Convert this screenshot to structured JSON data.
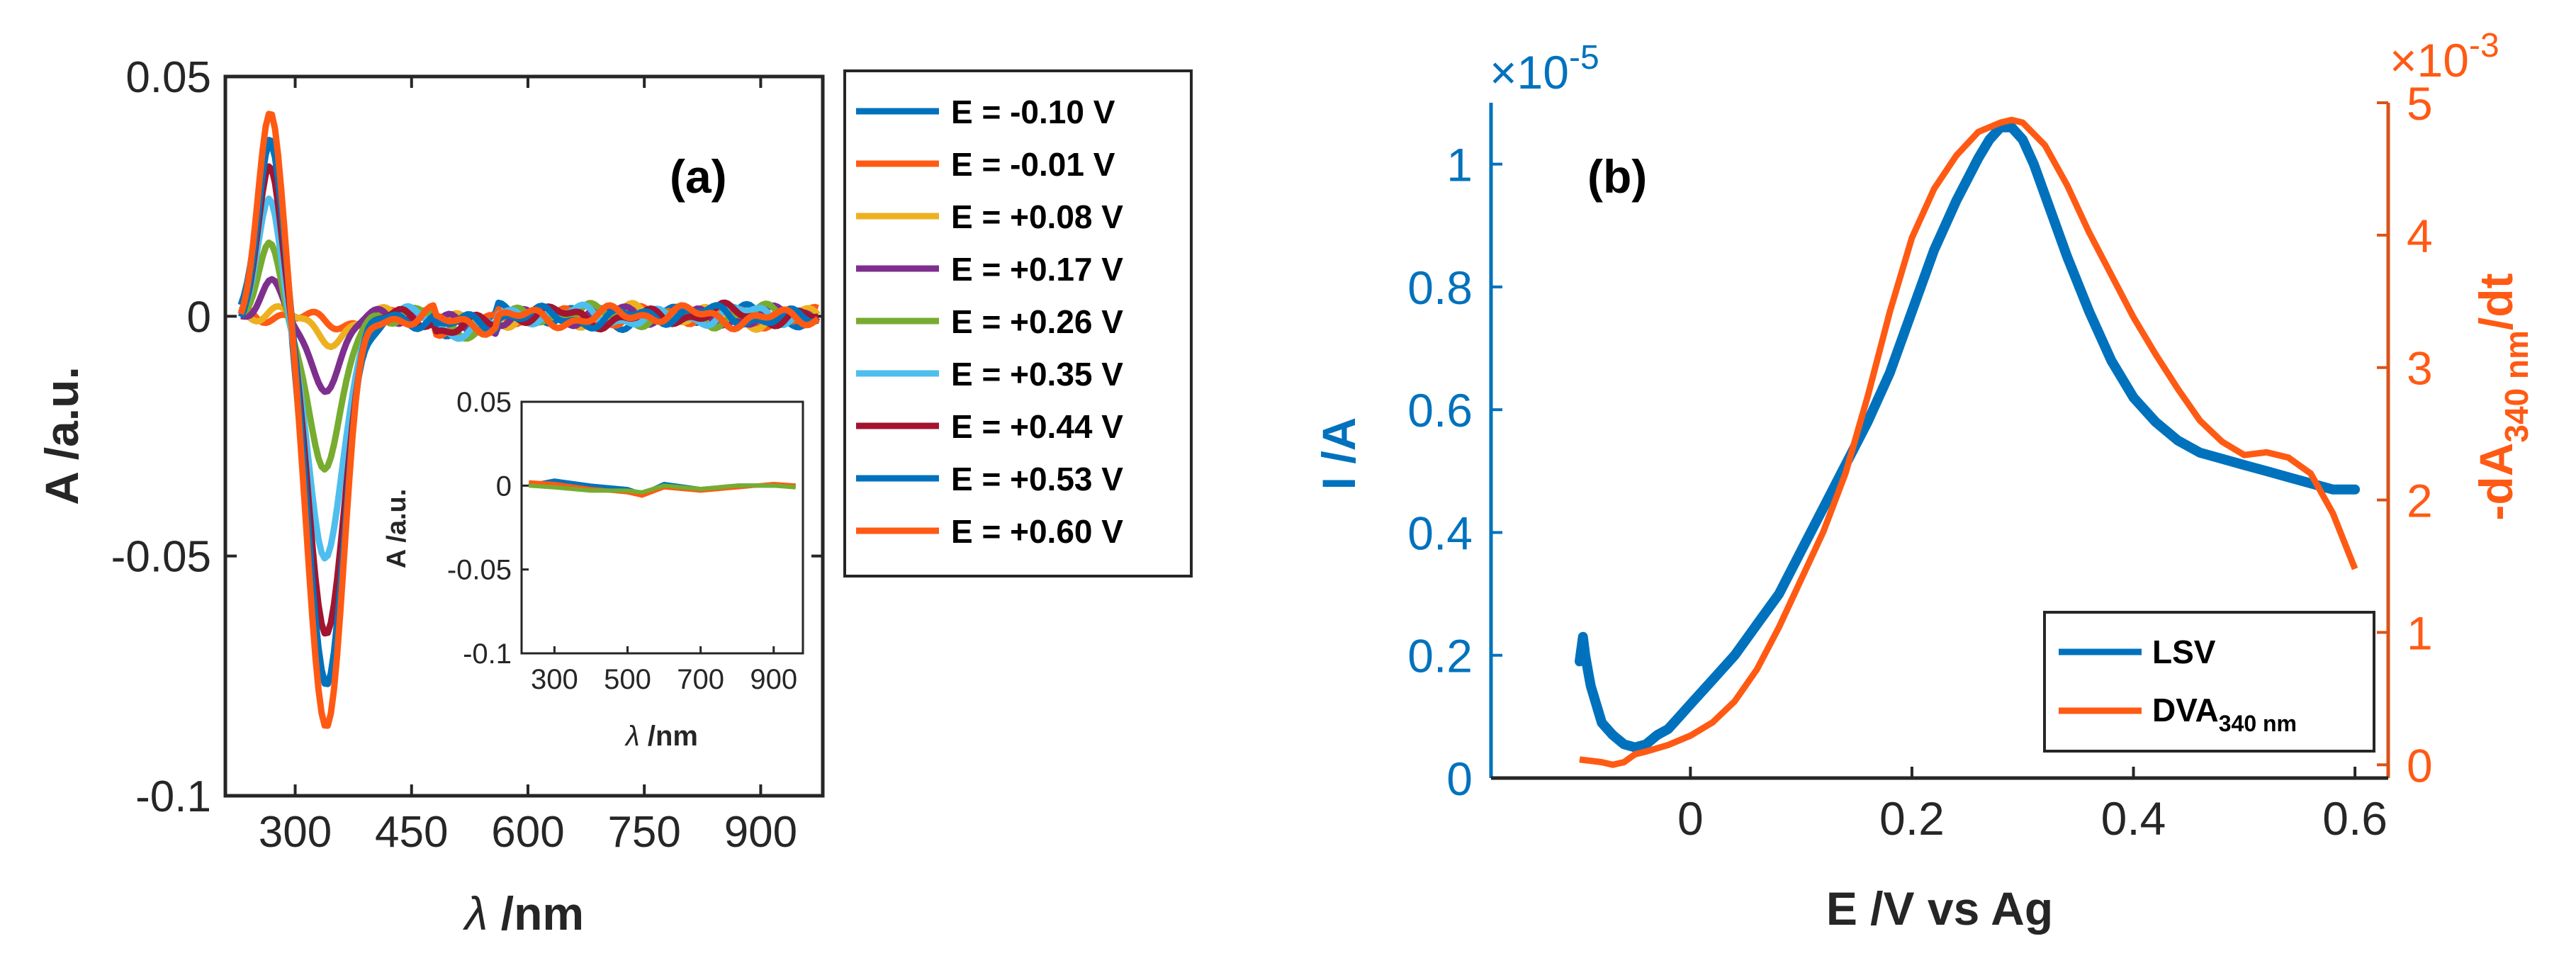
{
  "figure": {
    "panel_a": {
      "label": "(a)",
      "xlabel_symbol": "λ",
      "xlabel_unit": " /nm",
      "ylabel": "A /a.u.",
      "xlim": [
        210,
        980
      ],
      "ylim": [
        -0.1,
        0.05
      ],
      "xtick_values": [
        300,
        450,
        600,
        750,
        900
      ],
      "xtick_labels": [
        "300",
        "450",
        "600",
        "750",
        "900"
      ],
      "ytick_values": [
        0.05,
        0,
        -0.05,
        -0.1
      ],
      "ytick_labels": [
        "0.05",
        "0",
        "-0.05",
        "-0.1"
      ],
      "legend": {
        "placement": "outside-right",
        "entries": [
          "E = -0.10 V",
          "E = -0.01 V",
          "E = +0.08 V",
          "E = +0.17 V",
          "E = +0.26 V",
          "E = +0.35 V",
          "E = +0.44 V",
          "E = +0.53 V",
          "E = +0.60 V"
        ]
      },
      "inset": {
        "xlabel_symbol": "λ",
        "xlabel_unit": " /nm",
        "ylabel": "A /a.u.",
        "xlim": [
          210,
          980
        ],
        "ylim": [
          -0.1,
          0.05
        ],
        "xtick_values": [
          300,
          500,
          700,
          900
        ],
        "xtick_labels": [
          "300",
          "500",
          "700",
          "900"
        ],
        "ytick_values": [
          0.05,
          0,
          -0.05,
          -0.1
        ],
        "ytick_labels": [
          "0.05",
          "0",
          "-0.05",
          "-0.1"
        ]
      }
    },
    "panel_b": {
      "label": "(b)",
      "xlabel": "E /V vs Ag",
      "left_ylabel": "I /A",
      "left_multiplier_base": "×10",
      "left_multiplier_exp": "-5",
      "right_ylabel_main": "-dA",
      "right_ylabel_sub": "340 nm",
      "right_ylabel_tail": "/dt",
      "right_multiplier_base": "×10",
      "right_multiplier_exp": "-3",
      "xlim": [
        -0.18,
        0.63
      ],
      "xtick_values": [
        0,
        0.2,
        0.4,
        0.6
      ],
      "xtick_labels": [
        "0",
        "0.2",
        "0.4",
        "0.6"
      ],
      "left_ylim": [
        0,
        1.1
      ],
      "left_ytick_values": [
        0,
        0.2,
        0.4,
        0.6,
        0.8,
        1
      ],
      "left_ytick_labels": [
        "0",
        "0.2",
        "0.4",
        "0.6",
        "0.8",
        "1"
      ],
      "right_ylim": [
        -0.1,
        5
      ],
      "right_ytick_values": [
        0,
        1,
        2,
        3,
        4,
        5
      ],
      "right_ytick_labels": [
        "0",
        "1",
        "2",
        "3",
        "4",
        "5"
      ],
      "legend": {
        "placement": "bottom-right",
        "lsv_label": "LSV",
        "dva_main": "DVA",
        "dva_sub": "340 nm"
      }
    }
  },
  "colors": {
    "axis": "#262626",
    "blue_axis": "#0072BD",
    "orange_axis": "#D95319",
    "lsv": "#0072BD",
    "dva": "#FF5A14",
    "series": [
      "#0072BD",
      "#FF5A14",
      "#EDB120",
      "#7E2F8E",
      "#77AC30",
      "#4DBEEE",
      "#A2142F",
      "#0072BD",
      "#FF5A14"
    ]
  },
  "chart_data": [
    {
      "type": "line",
      "title": "(a)",
      "xlabel": "λ /nm",
      "ylabel": "A /a.u.",
      "xlim": [
        210,
        980
      ],
      "ylim": [
        -0.1,
        0.05
      ],
      "feature_model": {
        "peak_center_nm": 268,
        "peak_sigma_nm": 15,
        "trough_center_nm": 340,
        "trough_sigma_nm": 22,
        "noise_amplitude": 0.0025
      },
      "series": [
        {
          "name": "E = -0.10 V",
          "peak": 0.038,
          "trough": -0.079
        },
        {
          "name": "E = -0.01 V",
          "peak": 0.0,
          "trough": -0.002
        },
        {
          "name": "E = +0.08 V",
          "peak": 0.001,
          "trough": -0.004
        },
        {
          "name": "E = +0.17 V",
          "peak": 0.006,
          "trough": -0.013
        },
        {
          "name": "E = +0.26 V",
          "peak": 0.014,
          "trough": -0.031
        },
        {
          "name": "E = +0.35 V",
          "peak": 0.025,
          "trough": -0.052
        },
        {
          "name": "E = +0.44 V",
          "peak": 0.033,
          "trough": -0.068
        },
        {
          "name": "E = +0.53 V",
          "peak": 0.037,
          "trough": -0.077
        },
        {
          "name": "E = +0.60 V",
          "peak": 0.042,
          "trough": -0.085
        }
      ]
    },
    {
      "type": "line",
      "title": "(a) inset",
      "xlabel": "λ /nm",
      "ylabel": "A /a.u.",
      "xlim": [
        210,
        980
      ],
      "ylim": [
        -0.1,
        0.05
      ],
      "note": "all potentials overlap near zero absorbance",
      "series": [
        {
          "name": "E = -0.10 V",
          "x": [
            230,
            300,
            400,
            500,
            540,
            600,
            700,
            800,
            900,
            960
          ],
          "y": [
            0.0,
            0.003,
            0.0,
            -0.002,
            -0.005,
            0.001,
            -0.002,
            0.0,
            0.0,
            0.0
          ]
        },
        {
          "name": "E = +0.60 V",
          "x": [
            230,
            300,
            400,
            500,
            540,
            600,
            700,
            800,
            900,
            960
          ],
          "y": [
            0.002,
            0.001,
            -0.002,
            -0.004,
            -0.006,
            -0.001,
            -0.003,
            -0.001,
            0.001,
            0.0
          ]
        },
        {
          "name": "E = +0.26 V",
          "x": [
            230,
            300,
            400,
            500,
            540,
            600,
            700,
            800,
            900,
            960
          ],
          "y": [
            0.0,
            -0.001,
            -0.003,
            -0.003,
            -0.004,
            0.0,
            -0.002,
            0.0,
            0.0,
            -0.001
          ]
        }
      ]
    },
    {
      "type": "line",
      "title": "(b)",
      "xlabel": "E /V vs Ag",
      "ylabel": "I /A (×10^-5)",
      "ylabel_right": "-dA340 nm/dt (×10^-3)",
      "xlim": [
        -0.18,
        0.63
      ],
      "ylim": [
        0,
        1.1
      ],
      "ylim_right": [
        -0.1,
        5
      ],
      "series": [
        {
          "name": "LSV",
          "axis": "left",
          "x": [
            -0.1,
            -0.097,
            -0.095,
            -0.092,
            -0.09,
            -0.085,
            -0.08,
            -0.07,
            -0.06,
            -0.05,
            -0.04,
            -0.03,
            -0.02,
            -0.01,
            0.0,
            0.02,
            0.04,
            0.06,
            0.08,
            0.1,
            0.12,
            0.14,
            0.16,
            0.18,
            0.2,
            0.22,
            0.24,
            0.26,
            0.27,
            0.28,
            0.29,
            0.3,
            0.31,
            0.32,
            0.34,
            0.36,
            0.38,
            0.4,
            0.42,
            0.44,
            0.46,
            0.48,
            0.5,
            0.52,
            0.54,
            0.56,
            0.58,
            0.6
          ],
          "y": [
            0.19,
            0.23,
            0.2,
            0.17,
            0.15,
            0.12,
            0.09,
            0.07,
            0.055,
            0.05,
            0.055,
            0.07,
            0.08,
            0.1,
            0.12,
            0.16,
            0.2,
            0.25,
            0.3,
            0.37,
            0.44,
            0.51,
            0.58,
            0.66,
            0.76,
            0.86,
            0.94,
            1.01,
            1.04,
            1.06,
            1.06,
            1.04,
            1.0,
            0.95,
            0.85,
            0.76,
            0.68,
            0.62,
            0.58,
            0.55,
            0.53,
            0.52,
            0.51,
            0.5,
            0.49,
            0.48,
            0.47,
            0.47
          ]
        },
        {
          "name": "DVA340 nm",
          "axis": "right",
          "x": [
            -0.1,
            -0.09,
            -0.08,
            -0.07,
            -0.06,
            -0.05,
            -0.04,
            -0.02,
            0.0,
            0.02,
            0.04,
            0.06,
            0.08,
            0.1,
            0.12,
            0.14,
            0.16,
            0.18,
            0.2,
            0.22,
            0.24,
            0.26,
            0.28,
            0.29,
            0.3,
            0.32,
            0.34,
            0.36,
            0.38,
            0.4,
            0.42,
            0.44,
            0.46,
            0.48,
            0.5,
            0.52,
            0.54,
            0.56,
            0.58,
            0.6
          ],
          "y": [
            0.04,
            0.03,
            0.02,
            0.0,
            0.02,
            0.08,
            0.1,
            0.15,
            0.22,
            0.32,
            0.48,
            0.72,
            1.04,
            1.4,
            1.76,
            2.2,
            2.78,
            3.42,
            3.98,
            4.35,
            4.6,
            4.78,
            4.85,
            4.87,
            4.85,
            4.68,
            4.38,
            4.02,
            3.7,
            3.38,
            3.1,
            2.84,
            2.6,
            2.44,
            2.34,
            2.36,
            2.32,
            2.2,
            1.9,
            1.48
          ]
        }
      ]
    }
  ]
}
